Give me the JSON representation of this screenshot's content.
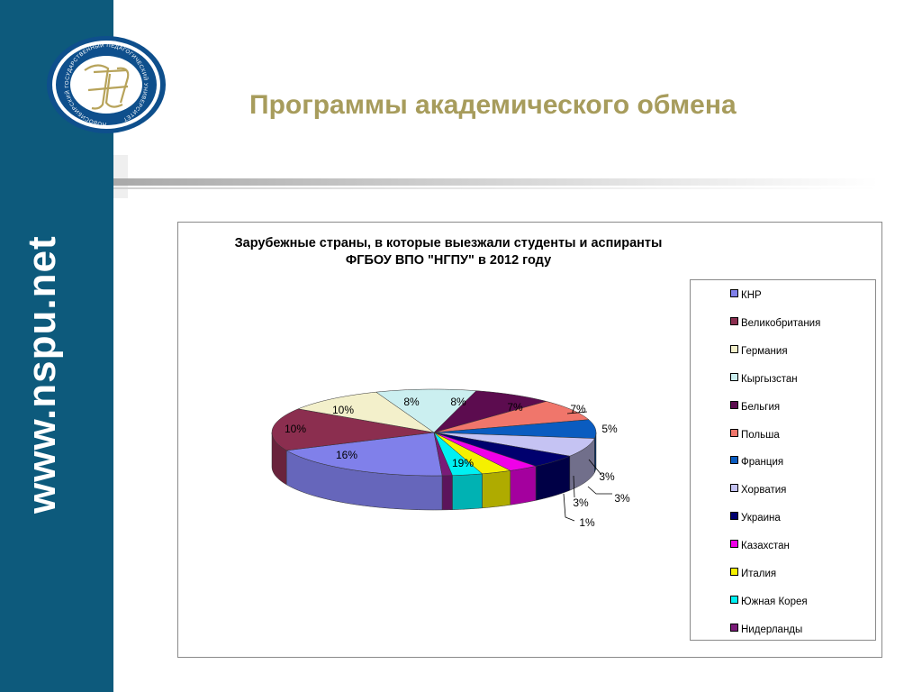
{
  "sidebar": {
    "url": "www.nspu.net"
  },
  "header": {
    "title": "Программы академического обмена"
  },
  "logo": {
    "ring_text": "НОВОСИБИРСКИЙ ГОСУДАРСТВЕННЫЙ ПЕДАГОГИЧЕСКИЙ УНИВЕРСИТЕТ"
  },
  "colors": {
    "sidebar": "#0d5a7c",
    "title": "#a79c5c"
  },
  "chart_data": {
    "type": "pie",
    "title_line1": "Зарубежные страны, в которые выезжали студенты и аспиранты",
    "title_line2": "ФГБОУ ВПО \"НГПУ\" в 2012 году",
    "legend_position": "right",
    "series": [
      {
        "name": "КНР",
        "value": 19,
        "label": "19%",
        "color": "#8080ea"
      },
      {
        "name": "Великобритания",
        "value": 16,
        "label": "16%",
        "color": "#8b2e4f"
      },
      {
        "name": "Германия",
        "value": 10,
        "label": "10%",
        "color": "#f3f0cb"
      },
      {
        "name": "Кыргызстан",
        "value": 10,
        "label": "10%",
        "color": "#cbeff0"
      },
      {
        "name": "Бельгия",
        "value": 8,
        "label": "8%",
        "color": "#5c0c4f"
      },
      {
        "name": "Польша",
        "value": 8,
        "label": "8%",
        "color": "#f0766b"
      },
      {
        "name": "Франция",
        "value": 7,
        "label": "7%",
        "color": "#0a5cc0"
      },
      {
        "name": "Хорватия",
        "value": 7,
        "label": "7%",
        "color": "#c5c3f3"
      },
      {
        "name": "Украина",
        "value": 5,
        "label": "5%",
        "color": "#00006e"
      },
      {
        "name": "Казахстан",
        "value": 3,
        "label": "3%",
        "color": "#f000e8"
      },
      {
        "name": "Италия",
        "value": 3,
        "label": "3%",
        "color": "#f5f000"
      },
      {
        "name": "Южная Корея",
        "value": 3,
        "label": "3%",
        "color": "#00f0f2"
      },
      {
        "name": "Нидерланды",
        "value": 1,
        "label": "1%",
        "color": "#7a1b78"
      }
    ]
  }
}
